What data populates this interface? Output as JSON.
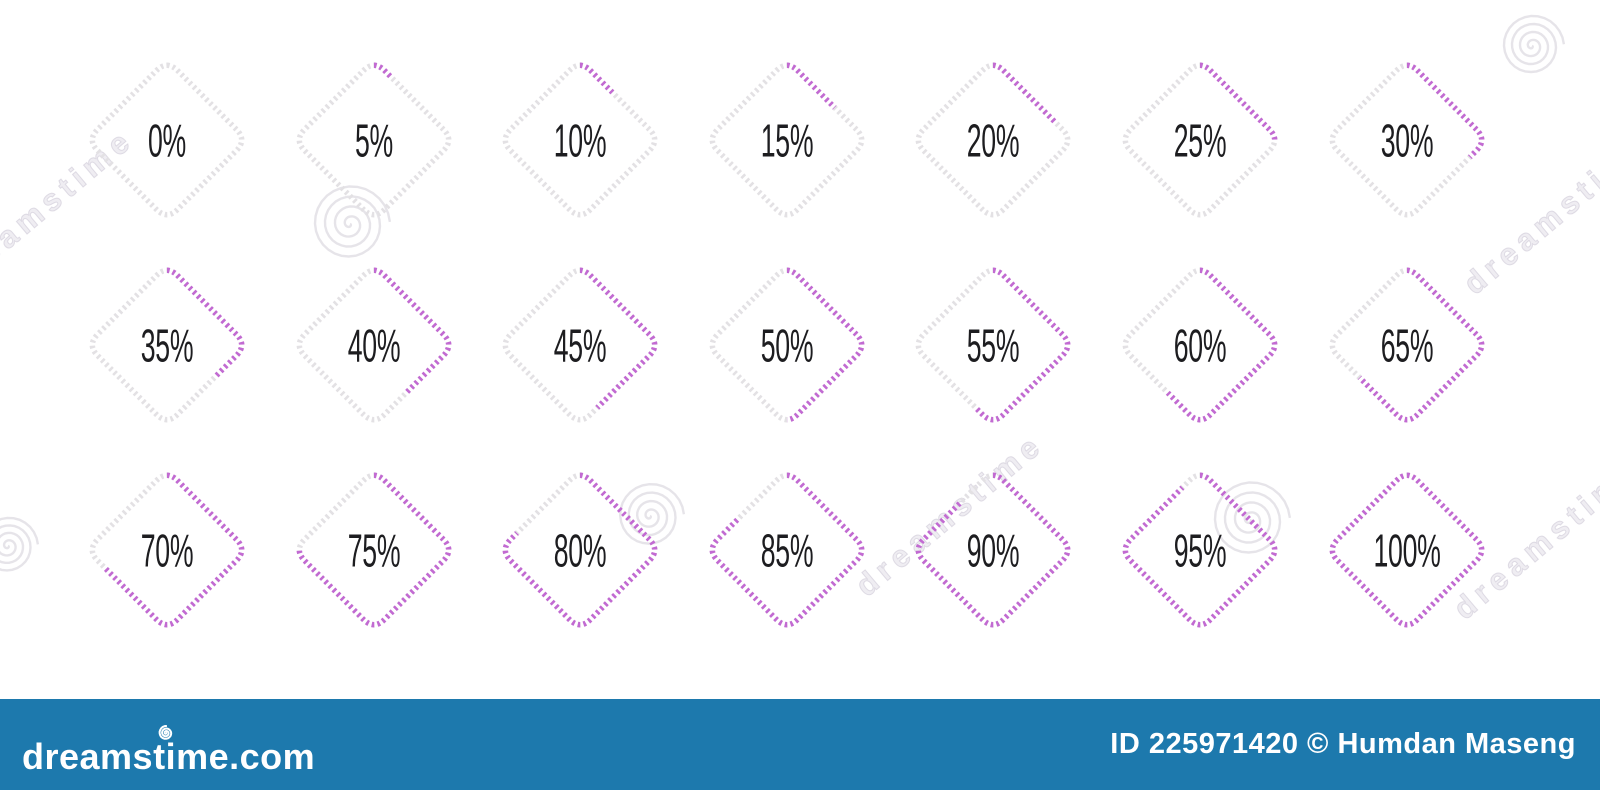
{
  "page": {
    "background": "#ffffff"
  },
  "chart_data": {
    "type": "progress-diagram-set",
    "shape": "dotted-rounded-rhombus",
    "unit": "%",
    "rows": 3,
    "columns": 7,
    "fill_start": "top-corner",
    "fill_direction": "clockwise",
    "values": [
      0,
      5,
      10,
      15,
      20,
      25,
      30,
      35,
      40,
      45,
      50,
      55,
      60,
      65,
      70,
      75,
      80,
      85,
      90,
      95,
      100
    ],
    "labels": [
      "0%",
      "5%",
      "10%",
      "15%",
      "20%",
      "25%",
      "30%",
      "35%",
      "40%",
      "45%",
      "50%",
      "55%",
      "60%",
      "65%",
      "70%",
      "75%",
      "80%",
      "85%",
      "90%",
      "95%",
      "100%"
    ],
    "colors": {
      "active": "#c26ad2",
      "inactive": "#e3e1e4",
      "label": "#1d1d20"
    }
  },
  "watermark": {
    "tile_text": "dreamstime",
    "spiral_icon": "spiral-logo"
  },
  "footer": {
    "background": "#1d79ad",
    "brand": "dreamstime.com",
    "credit": "ID 225971420 © Humdan Maseng"
  }
}
